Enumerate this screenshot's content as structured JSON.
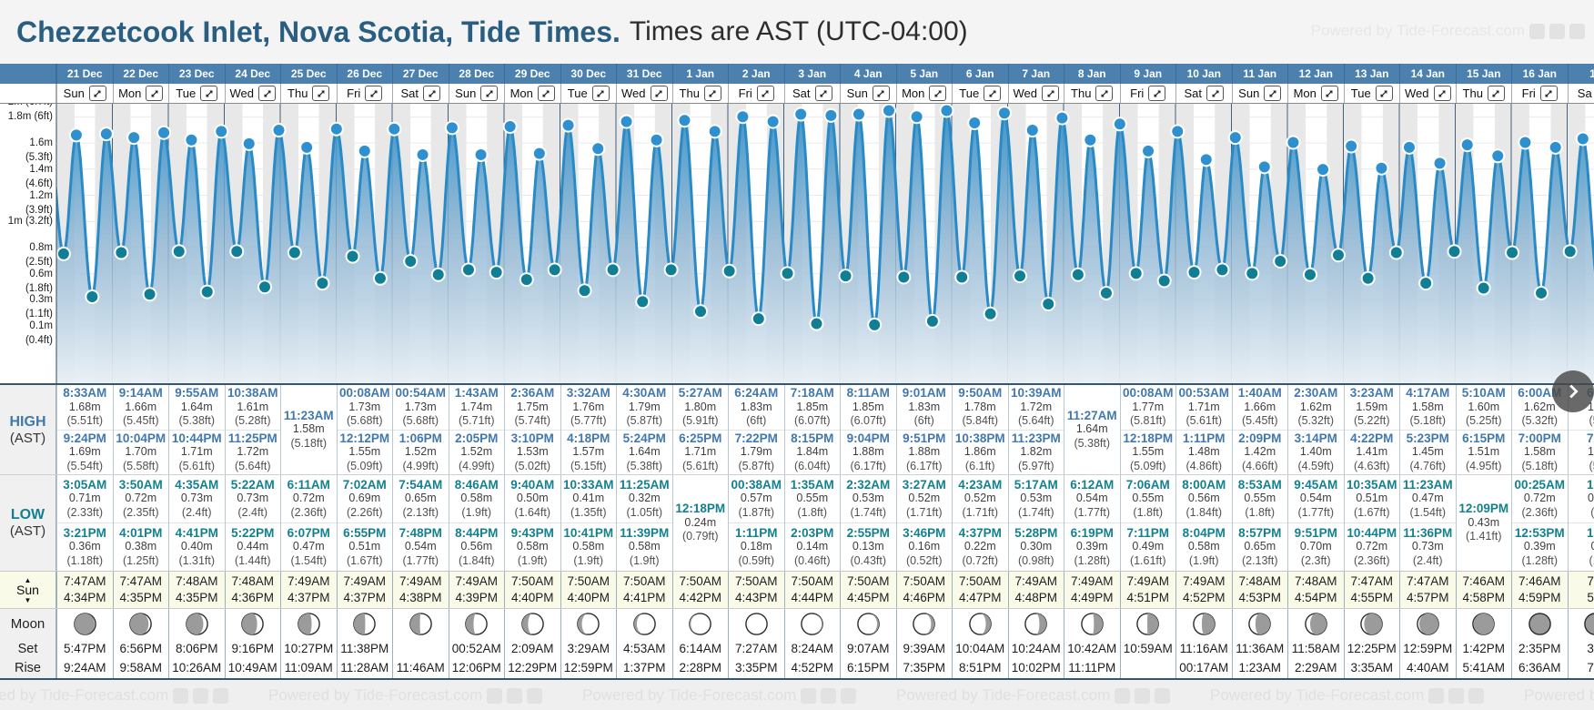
{
  "header": {
    "title": "Chezzetcook Inlet, Nova Scotia, Tide Times.",
    "subtitle": "Times are AST (UTC-04:00)"
  },
  "watermark": {
    "text": "Powered by Tide-Forecast.com"
  },
  "row_labels": {
    "high": "HIGH",
    "high_tz": "(AST)",
    "low": "LOW",
    "low_tz": "(AST)",
    "sun": "Sun",
    "moon": "Moon",
    "set": "Set",
    "rise": "Rise"
  },
  "sun_arrows": {
    "up": "▲",
    "down": "▼"
  },
  "colors": {
    "header_bar": "#4b80af",
    "title": "#2a5e80",
    "high_text": "#4178ae",
    "low_text": "#13808f",
    "curve_stroke": "#2a8ac5",
    "dot_high": "#2f90cf",
    "dot_low": "#107e95",
    "night_band": "#e8e8e8",
    "day_boundary": "#41607c",
    "moon_lit": "#9b9b9b"
  },
  "axis_labels": [
    {
      "text": "2m (6.7ft)",
      "ft": 6.7
    },
    {
      "text": "1.8m (6ft)",
      "ft": 6.0
    },
    {
      "text": "1.6m (5.3ft)",
      "ft": 5.3
    },
    {
      "text": "1.4m (4.6ft)",
      "ft": 4.6
    },
    {
      "text": "1.2m (3.9ft)",
      "ft": 3.9
    },
    {
      "text": "1m (3.2ft)",
      "ft": 3.2
    },
    {
      "text": "0.8m (2.5ft)",
      "ft": 2.5
    },
    {
      "text": "0.6m (1.8ft)",
      "ft": 1.8
    },
    {
      "text": "0.3m (1.1ft)",
      "ft": 1.1
    },
    {
      "text": "0.1m (0.4ft)",
      "ft": 0.4
    }
  ],
  "days": [
    {
      "date": "21 Dec",
      "dow": "Sun",
      "high": [
        {
          "t": "8:33AM",
          "m": "1.68m",
          "ft": "(5.51ft)"
        },
        {
          "t": "9:24PM",
          "m": "1.69m",
          "ft": "(5.54ft)"
        }
      ],
      "low": [
        {
          "t": "3:05AM",
          "m": "0.71m",
          "ft": "(2.33ft)"
        },
        {
          "t": "3:21PM",
          "m": "0.36m",
          "ft": "(1.18ft)"
        }
      ],
      "sun": [
        "7:47AM",
        "4:34PM"
      ],
      "moon": {
        "f": 0.95,
        "wax": false
      },
      "set": "5:47PM",
      "rise": "9:24AM"
    },
    {
      "date": "22 Dec",
      "dow": "Mon",
      "high": [
        {
          "t": "9:14AM",
          "m": "1.66m",
          "ft": "(5.45ft)"
        },
        {
          "t": "10:04PM",
          "m": "1.70m",
          "ft": "(5.58ft)"
        }
      ],
      "low": [
        {
          "t": "3:50AM",
          "m": "0.72m",
          "ft": "(2.35ft)"
        },
        {
          "t": "4:01PM",
          "m": "0.38m",
          "ft": "(1.25ft)"
        }
      ],
      "sun": [
        "7:47AM",
        "4:35PM"
      ],
      "moon": {
        "f": 0.88,
        "wax": false
      },
      "set": "6:56PM",
      "rise": "9:58AM"
    },
    {
      "date": "23 Dec",
      "dow": "Tue",
      "high": [
        {
          "t": "9:55AM",
          "m": "1.64m",
          "ft": "(5.38ft)"
        },
        {
          "t": "10:44PM",
          "m": "1.71m",
          "ft": "(5.61ft)"
        }
      ],
      "low": [
        {
          "t": "4:35AM",
          "m": "0.73m",
          "ft": "(2.4ft)"
        },
        {
          "t": "4:41PM",
          "m": "0.40m",
          "ft": "(1.31ft)"
        }
      ],
      "sun": [
        "7:48AM",
        "4:35PM"
      ],
      "moon": {
        "f": 0.8,
        "wax": false
      },
      "set": "8:06PM",
      "rise": "10:26AM"
    },
    {
      "date": "24 Dec",
      "dow": "Wed",
      "high": [
        {
          "t": "10:38AM",
          "m": "1.61m",
          "ft": "(5.28ft)"
        },
        {
          "t": "11:25PM",
          "m": "1.72m",
          "ft": "(5.64ft)"
        }
      ],
      "low": [
        {
          "t": "5:22AM",
          "m": "0.73m",
          "ft": "(2.4ft)"
        },
        {
          "t": "5:22PM",
          "m": "0.44m",
          "ft": "(1.44ft)"
        }
      ],
      "sun": [
        "7:48AM",
        "4:36PM"
      ],
      "moon": {
        "f": 0.72,
        "wax": false
      },
      "set": "9:16PM",
      "rise": "10:49AM"
    },
    {
      "date": "25 Dec",
      "dow": "Thu",
      "high": [
        {
          "t": "11:23AM",
          "m": "1.58m",
          "ft": "(5.18ft)"
        }
      ],
      "low": [
        {
          "t": "6:11AM",
          "m": "0.72m",
          "ft": "(2.36ft)"
        },
        {
          "t": "6:07PM",
          "m": "0.47m",
          "ft": "(1.54ft)"
        }
      ],
      "sun": [
        "7:49AM",
        "4:37PM"
      ],
      "moon": {
        "f": 0.63,
        "wax": false
      },
      "set": "10:27PM",
      "rise": "11:09AM"
    },
    {
      "date": "26 Dec",
      "dow": "Fri",
      "high": [
        {
          "t": "00:08AM",
          "m": "1.73m",
          "ft": "(5.68ft)"
        },
        {
          "t": "12:12PM",
          "m": "1.55m",
          "ft": "(5.09ft)"
        }
      ],
      "low": [
        {
          "t": "7:02AM",
          "m": "0.69m",
          "ft": "(2.26ft)"
        },
        {
          "t": "6:55PM",
          "m": "0.51m",
          "ft": "(1.67ft)"
        }
      ],
      "sun": [
        "7:49AM",
        "4:37PM"
      ],
      "moon": {
        "f": 0.54,
        "wax": false
      },
      "set": "11:38PM",
      "rise": "11:28AM"
    },
    {
      "date": "27 Dec",
      "dow": "Sat",
      "high": [
        {
          "t": "00:54AM",
          "m": "1.73m",
          "ft": "(5.68ft)"
        },
        {
          "t": "1:06PM",
          "m": "1.52m",
          "ft": "(4.99ft)"
        }
      ],
      "low": [
        {
          "t": "7:54AM",
          "m": "0.65m",
          "ft": "(2.13ft)"
        },
        {
          "t": "7:48PM",
          "m": "0.54m",
          "ft": "(1.77ft)"
        }
      ],
      "sun": [
        "7:49AM",
        "4:38PM"
      ],
      "moon": {
        "f": 0.46,
        "wax": false
      },
      "set": "",
      "rise": "11:46AM"
    },
    {
      "date": "28 Dec",
      "dow": "Sun",
      "high": [
        {
          "t": "1:43AM",
          "m": "1.74m",
          "ft": "(5.71ft)"
        },
        {
          "t": "2:05PM",
          "m": "1.52m",
          "ft": "(4.99ft)"
        }
      ],
      "low": [
        {
          "t": "8:46AM",
          "m": "0.58m",
          "ft": "(1.9ft)"
        },
        {
          "t": "8:44PM",
          "m": "0.56m",
          "ft": "(1.84ft)"
        }
      ],
      "sun": [
        "7:49AM",
        "4:39PM"
      ],
      "moon": {
        "f": 0.37,
        "wax": false
      },
      "set": "00:52AM",
      "rise": "12:06PM"
    },
    {
      "date": "29 Dec",
      "dow": "Mon",
      "high": [
        {
          "t": "2:36AM",
          "m": "1.75m",
          "ft": "(5.74ft)"
        },
        {
          "t": "3:10PM",
          "m": "1.53m",
          "ft": "(5.02ft)"
        }
      ],
      "low": [
        {
          "t": "9:40AM",
          "m": "0.50m",
          "ft": "(1.64ft)"
        },
        {
          "t": "9:43PM",
          "m": "0.58m",
          "ft": "(1.9ft)"
        }
      ],
      "sun": [
        "7:50AM",
        "4:40PM"
      ],
      "moon": {
        "f": 0.28,
        "wax": false
      },
      "set": "2:09AM",
      "rise": "12:29PM"
    },
    {
      "date": "30 Dec",
      "dow": "Tue",
      "high": [
        {
          "t": "3:32AM",
          "m": "1.76m",
          "ft": "(5.77ft)"
        },
        {
          "t": "4:18PM",
          "m": "1.57m",
          "ft": "(5.15ft)"
        }
      ],
      "low": [
        {
          "t": "10:33AM",
          "m": "0.41m",
          "ft": "(1.35ft)"
        },
        {
          "t": "10:41PM",
          "m": "0.58m",
          "ft": "(1.9ft)"
        }
      ],
      "sun": [
        "7:50AM",
        "4:40PM"
      ],
      "moon": {
        "f": 0.2,
        "wax": false
      },
      "set": "3:29AM",
      "rise": "12:59PM"
    },
    {
      "date": "31 Dec",
      "dow": "Wed",
      "high": [
        {
          "t": "4:30AM",
          "m": "1.79m",
          "ft": "(5.87ft)"
        },
        {
          "t": "5:24PM",
          "m": "1.64m",
          "ft": "(5.38ft)"
        }
      ],
      "low": [
        {
          "t": "11:25AM",
          "m": "0.32m",
          "ft": "(1.05ft)"
        },
        {
          "t": "11:39PM",
          "m": "0.58m",
          "ft": "(1.9ft)"
        }
      ],
      "sun": [
        "7:50AM",
        "4:41PM"
      ],
      "moon": {
        "f": 0.13,
        "wax": false
      },
      "set": "4:53AM",
      "rise": "1:37PM"
    },
    {
      "date": "1 Jan",
      "dow": "Thu",
      "high": [
        {
          "t": "5:27AM",
          "m": "1.80m",
          "ft": "(5.91ft)"
        },
        {
          "t": "6:25PM",
          "m": "1.71m",
          "ft": "(5.61ft)"
        }
      ],
      "low": [
        {
          "t": "12:18PM",
          "m": "0.24m",
          "ft": "(0.79ft)"
        }
      ],
      "sun": [
        "7:50AM",
        "4:42PM"
      ],
      "moon": {
        "f": 0.06,
        "wax": false
      },
      "set": "6:14AM",
      "rise": "2:28PM"
    },
    {
      "date": "2 Jan",
      "dow": "Fri",
      "high": [
        {
          "t": "6:24AM",
          "m": "1.83m",
          "ft": "(6ft)"
        },
        {
          "t": "7:22PM",
          "m": "1.79m",
          "ft": "(5.87ft)"
        }
      ],
      "low": [
        {
          "t": "00:38AM",
          "m": "0.57m",
          "ft": "(1.87ft)"
        },
        {
          "t": "1:11PM",
          "m": "0.18m",
          "ft": "(0.59ft)"
        }
      ],
      "sun": [
        "7:50AM",
        "4:43PM"
      ],
      "moon": {
        "f": 0.02,
        "wax": false
      },
      "set": "7:27AM",
      "rise": "3:35PM"
    },
    {
      "date": "3 Jan",
      "dow": "Sat",
      "high": [
        {
          "t": "7:18AM",
          "m": "1.85m",
          "ft": "(6.07ft)"
        },
        {
          "t": "8:15PM",
          "m": "1.84m",
          "ft": "(6.04ft)"
        }
      ],
      "low": [
        {
          "t": "1:35AM",
          "m": "0.55m",
          "ft": "(1.8ft)"
        },
        {
          "t": "2:03PM",
          "m": "0.14m",
          "ft": "(0.46ft)"
        }
      ],
      "sun": [
        "7:50AM",
        "4:44PM"
      ],
      "moon": {
        "f": 0.04,
        "wax": true
      },
      "set": "8:24AM",
      "rise": "4:52PM"
    },
    {
      "date": "4 Jan",
      "dow": "Sun",
      "high": [
        {
          "t": "8:11AM",
          "m": "1.85m",
          "ft": "(6.07ft)"
        },
        {
          "t": "9:04PM",
          "m": "1.88m",
          "ft": "(6.17ft)"
        }
      ],
      "low": [
        {
          "t": "2:32AM",
          "m": "0.53m",
          "ft": "(1.74ft)"
        },
        {
          "t": "2:55PM",
          "m": "0.13m",
          "ft": "(0.43ft)"
        }
      ],
      "sun": [
        "7:50AM",
        "4:45PM"
      ],
      "moon": {
        "f": 0.09,
        "wax": true
      },
      "set": "9:07AM",
      "rise": "6:15PM"
    },
    {
      "date": "5 Jan",
      "dow": "Mon",
      "high": [
        {
          "t": "9:01AM",
          "m": "1.83m",
          "ft": "(6ft)"
        },
        {
          "t": "9:51PM",
          "m": "1.88m",
          "ft": "(6.17ft)"
        }
      ],
      "low": [
        {
          "t": "3:27AM",
          "m": "0.52m",
          "ft": "(1.71ft)"
        },
        {
          "t": "3:46PM",
          "m": "0.16m",
          "ft": "(0.52ft)"
        }
      ],
      "sun": [
        "7:50AM",
        "4:46PM"
      ],
      "moon": {
        "f": 0.16,
        "wax": true
      },
      "set": "9:39AM",
      "rise": "7:35PM"
    },
    {
      "date": "6 Jan",
      "dow": "Tue",
      "high": [
        {
          "t": "9:50AM",
          "m": "1.78m",
          "ft": "(5.84ft)"
        },
        {
          "t": "10:38PM",
          "m": "1.86m",
          "ft": "(6.1ft)"
        }
      ],
      "low": [
        {
          "t": "4:23AM",
          "m": "0.52m",
          "ft": "(1.71ft)"
        },
        {
          "t": "4:37PM",
          "m": "0.22m",
          "ft": "(0.72ft)"
        }
      ],
      "sun": [
        "7:50AM",
        "4:47PM"
      ],
      "moon": {
        "f": 0.24,
        "wax": true
      },
      "set": "10:04AM",
      "rise": "8:51PM"
    },
    {
      "date": "7 Jan",
      "dow": "Wed",
      "high": [
        {
          "t": "10:39AM",
          "m": "1.72m",
          "ft": "(5.64ft)"
        },
        {
          "t": "11:23PM",
          "m": "1.82m",
          "ft": "(5.97ft)"
        }
      ],
      "low": [
        {
          "t": "5:17AM",
          "m": "0.53m",
          "ft": "(1.74ft)"
        },
        {
          "t": "5:28PM",
          "m": "0.30m",
          "ft": "(0.98ft)"
        }
      ],
      "sun": [
        "7:49AM",
        "4:48PM"
      ],
      "moon": {
        "f": 0.33,
        "wax": true
      },
      "set": "10:24AM",
      "rise": "10:02PM"
    },
    {
      "date": "8 Jan",
      "dow": "Thu",
      "high": [
        {
          "t": "11:27AM",
          "m": "1.64m",
          "ft": "(5.38ft)"
        }
      ],
      "low": [
        {
          "t": "6:12AM",
          "m": "0.54m",
          "ft": "(1.77ft)"
        },
        {
          "t": "6:19PM",
          "m": "0.39m",
          "ft": "(1.28ft)"
        }
      ],
      "sun": [
        "7:49AM",
        "4:49PM"
      ],
      "moon": {
        "f": 0.42,
        "wax": true
      },
      "set": "10:42AM",
      "rise": "11:11PM"
    },
    {
      "date": "9 Jan",
      "dow": "Fri",
      "high": [
        {
          "t": "00:08AM",
          "m": "1.77m",
          "ft": "(5.81ft)"
        },
        {
          "t": "12:18PM",
          "m": "1.55m",
          "ft": "(5.09ft)"
        }
      ],
      "low": [
        {
          "t": "7:06AM",
          "m": "0.55m",
          "ft": "(1.8ft)"
        },
        {
          "t": "7:11PM",
          "m": "0.49m",
          "ft": "(1.61ft)"
        }
      ],
      "sun": [
        "7:49AM",
        "4:51PM"
      ],
      "moon": {
        "f": 0.52,
        "wax": true
      },
      "set": "10:59AM",
      "rise": ""
    },
    {
      "date": "10 Jan",
      "dow": "Sat",
      "high": [
        {
          "t": "00:53AM",
          "m": "1.71m",
          "ft": "(5.61ft)"
        },
        {
          "t": "1:11PM",
          "m": "1.48m",
          "ft": "(4.86ft)"
        }
      ],
      "low": [
        {
          "t": "8:00AM",
          "m": "0.56m",
          "ft": "(1.84ft)"
        },
        {
          "t": "8:04PM",
          "m": "0.58m",
          "ft": "(1.9ft)"
        }
      ],
      "sun": [
        "7:49AM",
        "4:52PM"
      ],
      "moon": {
        "f": 0.61,
        "wax": true
      },
      "set": "11:16AM",
      "rise": "00:17AM"
    },
    {
      "date": "11 Jan",
      "dow": "Sun",
      "high": [
        {
          "t": "1:40AM",
          "m": "1.66m",
          "ft": "(5.45ft)"
        },
        {
          "t": "2:09PM",
          "m": "1.42m",
          "ft": "(4.66ft)"
        }
      ],
      "low": [
        {
          "t": "8:53AM",
          "m": "0.55m",
          "ft": "(1.8ft)"
        },
        {
          "t": "8:57PM",
          "m": "0.65m",
          "ft": "(2.13ft)"
        }
      ],
      "sun": [
        "7:48AM",
        "4:53PM"
      ],
      "moon": {
        "f": 0.7,
        "wax": true
      },
      "set": "11:36AM",
      "rise": "1:23AM"
    },
    {
      "date": "12 Jan",
      "dow": "Mon",
      "high": [
        {
          "t": "2:30AM",
          "m": "1.62m",
          "ft": "(5.32ft)"
        },
        {
          "t": "3:14PM",
          "m": "1.40m",
          "ft": "(4.59ft)"
        }
      ],
      "low": [
        {
          "t": "9:45AM",
          "m": "0.54m",
          "ft": "(1.77ft)"
        },
        {
          "t": "9:51PM",
          "m": "0.70m",
          "ft": "(2.3ft)"
        }
      ],
      "sun": [
        "7:48AM",
        "4:54PM"
      ],
      "moon": {
        "f": 0.78,
        "wax": true
      },
      "set": "11:58AM",
      "rise": "2:29AM"
    },
    {
      "date": "13 Jan",
      "dow": "Tue",
      "high": [
        {
          "t": "3:23AM",
          "m": "1.59m",
          "ft": "(5.22ft)"
        },
        {
          "t": "4:22PM",
          "m": "1.41m",
          "ft": "(4.63ft)"
        }
      ],
      "low": [
        {
          "t": "10:35AM",
          "m": "0.51m",
          "ft": "(1.67ft)"
        },
        {
          "t": "10:44PM",
          "m": "0.72m",
          "ft": "(2.36ft)"
        }
      ],
      "sun": [
        "7:47AM",
        "4:55PM"
      ],
      "moon": {
        "f": 0.85,
        "wax": true
      },
      "set": "12:25PM",
      "rise": "3:35AM"
    },
    {
      "date": "14 Jan",
      "dow": "Wed",
      "high": [
        {
          "t": "4:17AM",
          "m": "1.58m",
          "ft": "(5.18ft)"
        },
        {
          "t": "5:23PM",
          "m": "1.45m",
          "ft": "(4.76ft)"
        }
      ],
      "low": [
        {
          "t": "11:23AM",
          "m": "0.47m",
          "ft": "(1.54ft)"
        },
        {
          "t": "11:36PM",
          "m": "0.73m",
          "ft": "(2.4ft)"
        }
      ],
      "sun": [
        "7:47AM",
        "4:57PM"
      ],
      "moon": {
        "f": 0.91,
        "wax": true
      },
      "set": "12:59PM",
      "rise": "4:40AM"
    },
    {
      "date": "15 Jan",
      "dow": "Thu",
      "high": [
        {
          "t": "5:10AM",
          "m": "1.60m",
          "ft": "(5.25ft)"
        },
        {
          "t": "6:15PM",
          "m": "1.51m",
          "ft": "(4.95ft)"
        }
      ],
      "low": [
        {
          "t": "12:09PM",
          "m": "0.43m",
          "ft": "(1.41ft)"
        }
      ],
      "sun": [
        "7:46AM",
        "4:58PM"
      ],
      "moon": {
        "f": 0.96,
        "wax": true
      },
      "set": "1:42PM",
      "rise": "5:41AM"
    },
    {
      "date": "16 Jan",
      "dow": "Fri",
      "high": [
        {
          "t": "6:00AM",
          "m": "1.62m",
          "ft": "(5.32ft)"
        },
        {
          "t": "7:00PM",
          "m": "1.58m",
          "ft": "(5.18ft)"
        }
      ],
      "low": [
        {
          "t": "00:25AM",
          "m": "0.72m",
          "ft": "(2.36ft)"
        },
        {
          "t": "12:53PM",
          "m": "0.39m",
          "ft": "(1.28ft)"
        }
      ],
      "sun": [
        "7:46AM",
        "4:59PM"
      ],
      "moon": {
        "f": 1.0,
        "wax": true
      },
      "set": "2:35PM",
      "rise": "6:36AM"
    },
    {
      "date": "17",
      "dow": "Sa",
      "high": [
        {
          "t": "6:4",
          "m": "1.6",
          "ft": "(5."
        },
        {
          "t": "7:4",
          "m": "1.6",
          "ft": "(5."
        }
      ],
      "low": [
        {
          "t": "1:1",
          "m": "0.7",
          "ft": "(2"
        },
        {
          "t": "1:3",
          "m": "0.",
          "ft": "(1."
        }
      ],
      "sun": [
        "7:4",
        "5:0"
      ],
      "moon": {
        "f": 1.0,
        "wax": true
      },
      "set": "3:3",
      "rise": "7:2"
    }
  ],
  "chart_overrides": [
    {
      "day": -1,
      "h": 20.75,
      "v": 1.68
    },
    {
      "day": 27,
      "h": 1.25,
      "v": 0.73
    },
    {
      "day": 27,
      "h": 6.75,
      "v": 1.65
    },
    {
      "day": 27,
      "h": 13.4,
      "v": 0.45
    },
    {
      "day": 27,
      "h": 19.6,
      "v": 1.62
    }
  ]
}
